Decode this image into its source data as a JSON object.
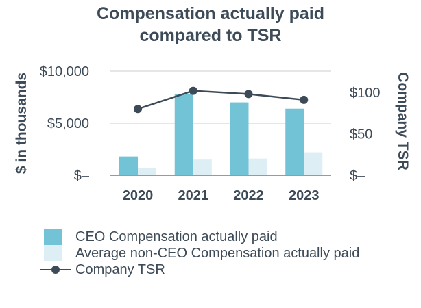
{
  "title_line1": "Compensation actually paid",
  "title_line2": "compared to TSR",
  "colors": {
    "ceo": "#72c3d6",
    "non_ceo": "#ddeef4",
    "tsr": "#3d4a57",
    "grid": "#e6e6e6",
    "axis": "#9a9a9a",
    "text": "#3d4a57"
  },
  "chart_data": {
    "type": "bar",
    "categories": [
      "2020",
      "2021",
      "2022",
      "2023"
    ],
    "series": [
      {
        "name": "CEO Compensation actually paid",
        "values": [
          1800,
          7800,
          7000,
          6400
        ]
      },
      {
        "name": "Average non-CEO Compensation actually paid",
        "values": [
          700,
          1500,
          1600,
          2200
        ]
      }
    ],
    "line_series": {
      "name": "Company TSR",
      "values": [
        80,
        102,
        98,
        91
      ]
    },
    "ylabel": "$ in thousands",
    "y_ticks": [
      "$10,000",
      "$5,000",
      "$–"
    ],
    "ylim": [
      0,
      10000
    ],
    "y2label": "Company TSR",
    "y2_ticks": [
      "$100",
      "$50",
      "$–"
    ],
    "y2lim": [
      0,
      125
    ],
    "grid": true,
    "legend_position": "bottom-left"
  }
}
